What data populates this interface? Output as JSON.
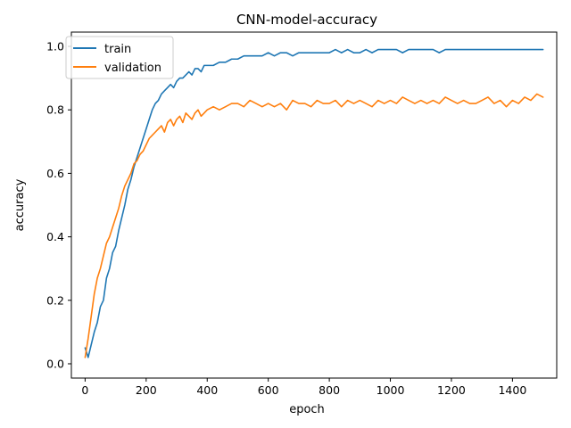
{
  "chart_data": {
    "type": "line",
    "title": "CNN-model-accuracy",
    "xlabel": "epoch",
    "ylabel": "accuracy",
    "xlim": [
      -45,
      1545
    ],
    "ylim": [
      -0.045,
      1.045
    ],
    "xticks": [
      0,
      200,
      400,
      600,
      800,
      1000,
      1200,
      1400
    ],
    "yticks": [
      0.0,
      0.2,
      0.4,
      0.6,
      0.8,
      1.0
    ],
    "xtick_labels": [
      "0",
      "200",
      "400",
      "600",
      "800",
      "1000",
      "1200",
      "1400"
    ],
    "ytick_labels": [
      "0.0",
      "0.2",
      "0.4",
      "0.6",
      "0.8",
      "1.0"
    ],
    "grid": false,
    "legend_position": "upper-left",
    "x": [
      0,
      10,
      20,
      30,
      40,
      50,
      60,
      70,
      80,
      90,
      100,
      110,
      120,
      130,
      140,
      150,
      160,
      170,
      180,
      190,
      200,
      210,
      220,
      230,
      240,
      250,
      260,
      270,
      280,
      290,
      300,
      310,
      320,
      330,
      340,
      350,
      360,
      370,
      380,
      390,
      400,
      420,
      440,
      460,
      480,
      500,
      520,
      540,
      560,
      580,
      600,
      620,
      640,
      660,
      680,
      700,
      720,
      740,
      760,
      780,
      800,
      820,
      840,
      860,
      880,
      900,
      920,
      940,
      960,
      980,
      1000,
      1020,
      1040,
      1060,
      1080,
      1100,
      1120,
      1140,
      1160,
      1180,
      1200,
      1220,
      1240,
      1260,
      1280,
      1300,
      1320,
      1340,
      1360,
      1380,
      1400,
      1420,
      1440,
      1460,
      1480,
      1500
    ],
    "series": [
      {
        "name": "train",
        "color": "#1f77b4",
        "values": [
          0.05,
          0.02,
          0.06,
          0.1,
          0.13,
          0.18,
          0.2,
          0.27,
          0.3,
          0.35,
          0.37,
          0.42,
          0.46,
          0.5,
          0.55,
          0.58,
          0.62,
          0.65,
          0.68,
          0.71,
          0.74,
          0.77,
          0.8,
          0.82,
          0.83,
          0.85,
          0.86,
          0.87,
          0.88,
          0.87,
          0.89,
          0.9,
          0.9,
          0.91,
          0.92,
          0.91,
          0.93,
          0.93,
          0.92,
          0.94,
          0.94,
          0.94,
          0.95,
          0.95,
          0.96,
          0.96,
          0.97,
          0.97,
          0.97,
          0.97,
          0.98,
          0.97,
          0.98,
          0.98,
          0.97,
          0.98,
          0.98,
          0.98,
          0.98,
          0.98,
          0.98,
          0.99,
          0.98,
          0.99,
          0.98,
          0.98,
          0.99,
          0.98,
          0.99,
          0.99,
          0.99,
          0.99,
          0.98,
          0.99,
          0.99,
          0.99,
          0.99,
          0.99,
          0.98,
          0.99,
          0.99,
          0.99,
          0.99,
          0.99,
          0.99,
          0.99,
          0.99,
          0.99,
          0.99,
          0.99,
          0.99,
          0.99,
          0.99,
          0.99,
          0.99,
          0.99
        ]
      },
      {
        "name": "validation",
        "color": "#ff7f0e",
        "values": [
          0.02,
          0.08,
          0.15,
          0.22,
          0.27,
          0.3,
          0.34,
          0.38,
          0.4,
          0.43,
          0.46,
          0.49,
          0.53,
          0.56,
          0.58,
          0.6,
          0.63,
          0.64,
          0.66,
          0.67,
          0.69,
          0.71,
          0.72,
          0.73,
          0.74,
          0.75,
          0.73,
          0.76,
          0.77,
          0.75,
          0.77,
          0.78,
          0.76,
          0.79,
          0.78,
          0.77,
          0.79,
          0.8,
          0.78,
          0.79,
          0.8,
          0.81,
          0.8,
          0.81,
          0.82,
          0.82,
          0.81,
          0.83,
          0.82,
          0.81,
          0.82,
          0.81,
          0.82,
          0.8,
          0.83,
          0.82,
          0.82,
          0.81,
          0.83,
          0.82,
          0.82,
          0.83,
          0.81,
          0.83,
          0.82,
          0.83,
          0.82,
          0.81,
          0.83,
          0.82,
          0.83,
          0.82,
          0.84,
          0.83,
          0.82,
          0.83,
          0.82,
          0.83,
          0.82,
          0.84,
          0.83,
          0.82,
          0.83,
          0.82,
          0.82,
          0.83,
          0.84,
          0.82,
          0.83,
          0.81,
          0.83,
          0.82,
          0.84,
          0.83,
          0.85,
          0.84
        ]
      }
    ]
  }
}
